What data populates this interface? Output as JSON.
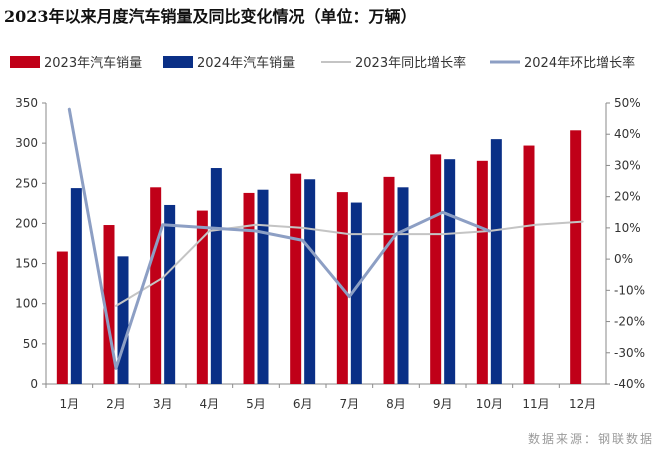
{
  "chart_data": {
    "type": "bar",
    "title": "2023年以来月度汽车销量及同比变化情况（单位：万辆）",
    "categories": [
      "1月",
      "2月",
      "3月",
      "4月",
      "5月",
      "6月",
      "7月",
      "8月",
      "9月",
      "10月",
      "11月",
      "12月"
    ],
    "series": [
      {
        "name": "2023年汽车销量",
        "type": "bar",
        "axis": "left",
        "color": "#c00018",
        "values": [
          165,
          198,
          245,
          216,
          238,
          262,
          239,
          258,
          286,
          278,
          297,
          316
        ]
      },
      {
        "name": "2024年汽车销量",
        "type": "bar",
        "axis": "left",
        "color": "#0a2f86",
        "values": [
          244,
          159,
          223,
          269,
          242,
          255,
          226,
          245,
          280,
          305,
          null,
          null
        ]
      },
      {
        "name": "2023年同比增长率",
        "type": "line",
        "axis": "right",
        "color": "#c4c4c4",
        "values": [
          null,
          -15,
          -6,
          9,
          11,
          10,
          8,
          8,
          8,
          9,
          11,
          12
        ]
      },
      {
        "name": "2024年环比增长率",
        "type": "line",
        "axis": "right",
        "color": "#8d9fc4",
        "values": [
          48,
          -35,
          11,
          10,
          9,
          6,
          -12,
          8,
          15,
          9,
          null,
          null
        ]
      }
    ],
    "y_left": {
      "min": 0,
      "max": 350,
      "step": 50,
      "tick_labels": [
        "0",
        "50",
        "100",
        "150",
        "200",
        "250",
        "300",
        "350"
      ]
    },
    "y_right": {
      "min": -40,
      "max": 50,
      "step": 10,
      "tick_labels": [
        "-40%",
        "-30%",
        "-20%",
        "-10%",
        "0%",
        "10%",
        "20%",
        "30%",
        "40%",
        "50%"
      ]
    },
    "grid": false,
    "legend_position": "top"
  },
  "source": "数据来源：钢联数据"
}
